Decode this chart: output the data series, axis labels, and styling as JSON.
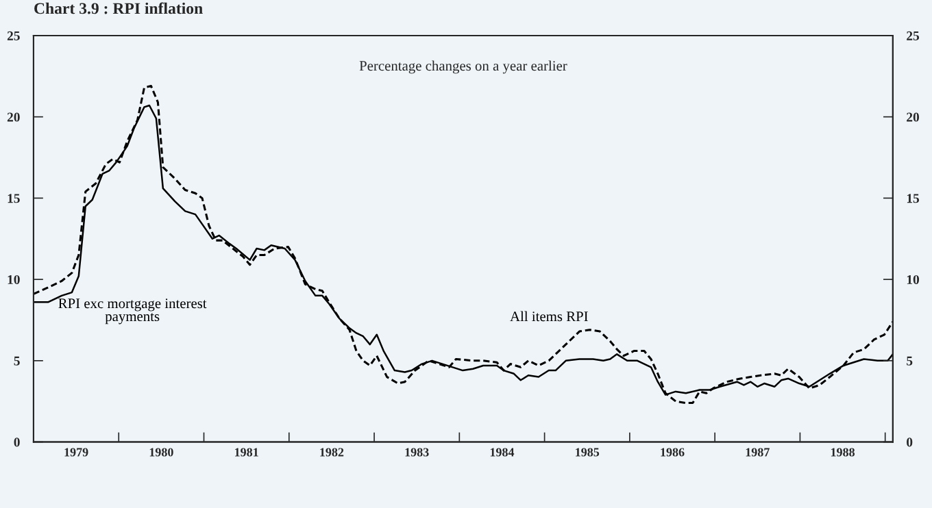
{
  "chart_data": {
    "type": "line",
    "title": "Chart 3.9 : RPI inflation",
    "subtitle": "Percentage changes on a year earlier",
    "series": [
      {
        "name": "RPI exc mortgage interest\npayments",
        "color": "#000000",
        "line_style": "solid",
        "x": [
          1979.0,
          1979.17,
          1979.33,
          1979.45,
          1979.53,
          1979.61,
          1979.69,
          1979.81,
          1979.89,
          1979.97,
          1980.1,
          1980.18,
          1980.3,
          1980.36,
          1980.44,
          1980.52,
          1980.66,
          1980.78,
          1980.9,
          1980.98,
          1981.1,
          1981.18,
          1981.3,
          1981.38,
          1981.54,
          1981.62,
          1981.71,
          1981.79,
          1981.95,
          1982.07,
          1982.19,
          1982.31,
          1982.39,
          1982.47,
          1982.59,
          1982.71,
          1982.79,
          1982.87,
          1982.95,
          1983.03,
          1983.11,
          1983.24,
          1983.36,
          1983.44,
          1983.56,
          1983.68,
          1983.8,
          1983.92,
          1984.04,
          1984.16,
          1984.28,
          1984.44,
          1984.52,
          1984.64,
          1984.72,
          1984.81,
          1984.93,
          1985.05,
          1985.13,
          1985.25,
          1985.41,
          1985.57,
          1985.69,
          1985.77,
          1985.85,
          1985.97,
          1986.09,
          1986.17,
          1986.25,
          1986.33,
          1986.42,
          1986.54,
          1986.66,
          1986.82,
          1986.94,
          1987.06,
          1987.26,
          1987.34,
          1987.42,
          1987.5,
          1987.58,
          1987.7,
          1987.78,
          1987.86,
          1987.99,
          1988.11,
          1988.23,
          1988.35,
          1988.51,
          1988.63,
          1988.75,
          1988.91,
          1989.03,
          1989.09
        ],
        "values": [
          8.6,
          8.6,
          9.0,
          9.2,
          10.2,
          14.5,
          14.9,
          16.5,
          16.7,
          17.2,
          18.2,
          19.3,
          20.6,
          20.7,
          19.9,
          15.6,
          14.8,
          14.2,
          14.0,
          13.4,
          12.5,
          12.7,
          12.2,
          11.9,
          11.2,
          11.9,
          11.8,
          12.1,
          11.9,
          11.2,
          9.9,
          9.0,
          9.0,
          8.5,
          7.6,
          7.0,
          6.7,
          6.5,
          6.0,
          6.6,
          5.6,
          4.4,
          4.3,
          4.4,
          4.8,
          5.0,
          4.8,
          4.6,
          4.4,
          4.5,
          4.7,
          4.7,
          4.4,
          4.2,
          3.8,
          4.1,
          4.0,
          4.4,
          4.4,
          5.0,
          5.1,
          5.1,
          5.0,
          5.1,
          5.4,
          5.0,
          5.0,
          4.8,
          4.6,
          3.7,
          2.9,
          3.1,
          3.0,
          3.2,
          3.2,
          3.4,
          3.7,
          3.5,
          3.7,
          3.4,
          3.6,
          3.4,
          3.8,
          3.9,
          3.6,
          3.4,
          3.8,
          4.2,
          4.7,
          4.9,
          5.1,
          5.0,
          5.0,
          5.4
        ]
      },
      {
        "name": "All items RPI",
        "color": "#000000",
        "line_style": "dashed",
        "x": [
          1979.0,
          1979.17,
          1979.33,
          1979.45,
          1979.53,
          1979.61,
          1979.73,
          1979.85,
          1979.93,
          1980.01,
          1980.1,
          1980.22,
          1980.3,
          1980.38,
          1980.46,
          1980.52,
          1980.66,
          1980.78,
          1980.9,
          1980.98,
          1981.06,
          1981.14,
          1981.22,
          1981.34,
          1981.46,
          1981.54,
          1981.62,
          1981.71,
          1981.83,
          1981.99,
          1982.07,
          1982.19,
          1982.31,
          1982.39,
          1982.47,
          1982.59,
          1982.71,
          1982.79,
          1982.87,
          1982.95,
          1983.03,
          1983.15,
          1983.28,
          1983.36,
          1983.48,
          1983.64,
          1983.76,
          1983.88,
          1983.96,
          1984.16,
          1984.28,
          1984.44,
          1984.52,
          1984.6,
          1984.72,
          1984.81,
          1984.93,
          1985.05,
          1985.17,
          1985.29,
          1985.41,
          1985.53,
          1985.65,
          1985.77,
          1985.85,
          1985.93,
          1986.05,
          1986.17,
          1986.25,
          1986.33,
          1986.42,
          1986.54,
          1986.66,
          1986.74,
          1986.82,
          1986.9,
          1986.98,
          1987.14,
          1987.3,
          1987.42,
          1987.54,
          1987.7,
          1987.78,
          1987.86,
          1987.99,
          1988.11,
          1988.23,
          1988.35,
          1988.51,
          1988.63,
          1988.75,
          1988.87,
          1988.99,
          1989.09
        ],
        "values": [
          9.1,
          9.5,
          9.9,
          10.4,
          11.5,
          15.4,
          15.9,
          17.1,
          17.4,
          17.2,
          18.5,
          19.8,
          21.8,
          21.9,
          20.9,
          16.9,
          16.2,
          15.5,
          15.3,
          15.0,
          13.3,
          12.4,
          12.4,
          11.9,
          11.4,
          10.9,
          11.5,
          11.5,
          11.9,
          12.0,
          11.3,
          9.7,
          9.4,
          9.3,
          8.6,
          7.6,
          6.9,
          5.6,
          5.0,
          4.7,
          5.3,
          4.0,
          3.6,
          3.7,
          4.4,
          5.0,
          4.8,
          4.6,
          5.1,
          5.0,
          5.0,
          4.9,
          4.4,
          4.8,
          4.6,
          5.0,
          4.7,
          5.0,
          5.6,
          6.2,
          6.8,
          6.9,
          6.8,
          6.2,
          5.7,
          5.3,
          5.6,
          5.6,
          5.1,
          4.2,
          3.0,
          2.5,
          2.4,
          2.4,
          3.1,
          3.0,
          3.3,
          3.7,
          3.9,
          4.0,
          4.1,
          4.2,
          4.1,
          4.5,
          4.0,
          3.3,
          3.5,
          4.0,
          4.7,
          5.5,
          5.7,
          6.3,
          6.6,
          7.4
        ]
      }
    ],
    "xlim": [
      1979,
      1989.09
    ],
    "xticks": [
      {
        "value": 1979,
        "label": null
      },
      {
        "value": 1979.5,
        "label": "1979"
      },
      {
        "value": 1980,
        "label": null
      },
      {
        "value": 1980.5,
        "label": "1980"
      },
      {
        "value": 1981,
        "label": null
      },
      {
        "value": 1981.5,
        "label": "1981"
      },
      {
        "value": 1982,
        "label": null
      },
      {
        "value": 1982.5,
        "label": "1982"
      },
      {
        "value": 1983,
        "label": null
      },
      {
        "value": 1983.5,
        "label": "1983"
      },
      {
        "value": 1984,
        "label": null
      },
      {
        "value": 1984.5,
        "label": "1984"
      },
      {
        "value": 1985,
        "label": null
      },
      {
        "value": 1985.5,
        "label": "1985"
      },
      {
        "value": 1986,
        "label": null
      },
      {
        "value": 1986.5,
        "label": "1986"
      },
      {
        "value": 1987,
        "label": null
      },
      {
        "value": 1987.5,
        "label": "1987"
      },
      {
        "value": 1988,
        "label": null
      },
      {
        "value": 1988.5,
        "label": "1988"
      },
      {
        "value": 1989,
        "label": null
      }
    ],
    "ylim": [
      0,
      25
    ],
    "yticks": [
      0,
      5,
      10,
      15,
      20,
      25
    ],
    "y2lim": [
      0,
      25
    ],
    "y2ticks": [
      0,
      5,
      10,
      15,
      20,
      25
    ],
    "grid": false,
    "legend": false
  }
}
